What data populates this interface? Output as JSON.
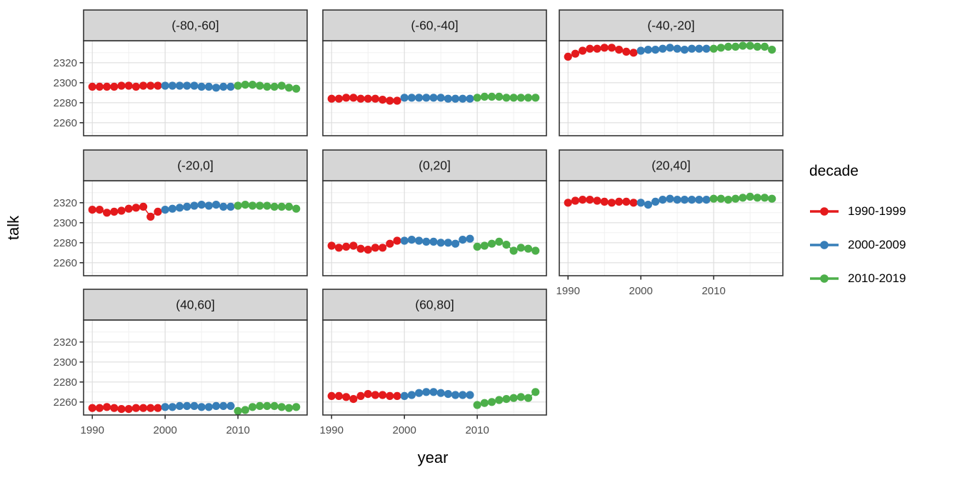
{
  "chart_data": {
    "type": "scatter",
    "title": "",
    "xlabel": "year",
    "ylabel": "talk",
    "grid": true,
    "x_domain": [
      1988.8,
      2019.5
    ],
    "y_domain": [
      2247,
      2342
    ],
    "x_ticks": [
      1990,
      2000,
      2010
    ],
    "y_ticks": [
      2320,
      2300,
      2280,
      2260
    ],
    "x_minor_gridlines": [
      1995,
      2005,
      2015
    ],
    "y_minor_gridlines": [
      2250,
      2270,
      2290,
      2310,
      2330
    ],
    "legend": {
      "title": "decade",
      "position": "right",
      "entries": [
        {
          "label": "1990-1999",
          "color": "#E41A1C"
        },
        {
          "label": "2000-2009",
          "color": "#377EB8"
        },
        {
          "label": "2010-2019",
          "color": "#4DAF4A"
        }
      ]
    },
    "decades": [
      {
        "name": "1990-1999",
        "color": "#E41A1C",
        "years": [
          1990,
          1991,
          1992,
          1993,
          1994,
          1995,
          1996,
          1997,
          1998,
          1999
        ]
      },
      {
        "name": "2000-2009",
        "color": "#377EB8",
        "years": [
          2000,
          2001,
          2002,
          2003,
          2004,
          2005,
          2006,
          2007,
          2008,
          2009
        ]
      },
      {
        "name": "2010-2019",
        "color": "#4DAF4A",
        "years": [
          2010,
          2011,
          2012,
          2013,
          2014,
          2015,
          2016,
          2017,
          2018
        ]
      }
    ],
    "facets": [
      {
        "label": "(-80,-60]",
        "series": [
          {
            "name": "1990-1999",
            "values": [
              2296,
              2296,
              2296,
              2296,
              2297,
              2297,
              2296,
              2297,
              2297,
              2297
            ]
          },
          {
            "name": "2000-2009",
            "values": [
              2297,
              2297,
              2297,
              2297,
              2297,
              2296,
              2296,
              2295,
              2296,
              2296
            ]
          },
          {
            "name": "2010-2019",
            "values": [
              2297,
              2298,
              2298,
              2297,
              2296,
              2296,
              2297,
              2295,
              2294
            ]
          }
        ]
      },
      {
        "label": "(-60,-40]",
        "series": [
          {
            "name": "1990-1999",
            "values": [
              2284,
              2284,
              2285,
              2285,
              2284,
              2284,
              2284,
              2283,
              2282,
              2282
            ]
          },
          {
            "name": "2000-2009",
            "values": [
              2285,
              2285,
              2285,
              2285,
              2285,
              2285,
              2284,
              2284,
              2284,
              2284
            ]
          },
          {
            "name": "2010-2019",
            "values": [
              2285,
              2286,
              2286,
              2286,
              2285,
              2285,
              2285,
              2285,
              2285
            ]
          }
        ]
      },
      {
        "label": "(-40,-20]",
        "series": [
          {
            "name": "1990-1999",
            "values": [
              2326,
              2329,
              2332,
              2334,
              2334,
              2335,
              2335,
              2333,
              2331,
              2330
            ]
          },
          {
            "name": "2000-2009",
            "values": [
              2332,
              2333,
              2333,
              2334,
              2335,
              2334,
              2333,
              2334,
              2334,
              2334
            ]
          },
          {
            "name": "2010-2019",
            "values": [
              2334,
              2335,
              2336,
              2336,
              2337,
              2337,
              2336,
              2336,
              2333
            ]
          }
        ]
      },
      {
        "label": "(-20,0]",
        "series": [
          {
            "name": "1990-1999",
            "values": [
              2313,
              2313,
              2310,
              2311,
              2312,
              2314,
              2315,
              2316,
              2306,
              2311
            ]
          },
          {
            "name": "2000-2009",
            "values": [
              2313,
              2314,
              2315,
              2316,
              2317,
              2318,
              2317,
              2318,
              2316,
              2316
            ]
          },
          {
            "name": "2010-2019",
            "values": [
              2317,
              2318,
              2317,
              2317,
              2317,
              2316,
              2316,
              2316,
              2314
            ]
          }
        ]
      },
      {
        "label": "(0,20]",
        "series": [
          {
            "name": "1990-1999",
            "values": [
              2277,
              2275,
              2276,
              2277,
              2274,
              2273,
              2275,
              2275,
              2279,
              2282
            ]
          },
          {
            "name": "2000-2009",
            "values": [
              2282,
              2283,
              2282,
              2281,
              2281,
              2280,
              2280,
              2279,
              2283,
              2284
            ]
          },
          {
            "name": "2010-2019",
            "values": [
              2276,
              2277,
              2279,
              2281,
              2278,
              2272,
              2275,
              2274,
              2272
            ]
          }
        ]
      },
      {
        "label": "(20,40]",
        "series": [
          {
            "name": "1990-1999",
            "values": [
              2320,
              2322,
              2323,
              2323,
              2322,
              2321,
              2320,
              2321,
              2321,
              2320
            ]
          },
          {
            "name": "2000-2009",
            "values": [
              2320,
              2318,
              2321,
              2323,
              2324,
              2323,
              2323,
              2323,
              2323,
              2323
            ]
          },
          {
            "name": "2010-2019",
            "values": [
              2324,
              2324,
              2323,
              2324,
              2325,
              2326,
              2325,
              2325,
              2324
            ]
          }
        ]
      },
      {
        "label": "(40,60]",
        "series": [
          {
            "name": "1990-1999",
            "values": [
              2254,
              2254,
              2255,
              2254,
              2253,
              2253,
              2254,
              2254,
              2254,
              2254
            ]
          },
          {
            "name": "2000-2009",
            "values": [
              2255,
              2255,
              2256,
              2256,
              2256,
              2255,
              2255,
              2256,
              2256,
              2256
            ]
          },
          {
            "name": "2010-2019",
            "values": [
              2251,
              2252,
              2255,
              2256,
              2256,
              2256,
              2255,
              2254,
              2255
            ]
          }
        ]
      },
      {
        "label": "(60,80]",
        "series": [
          {
            "name": "1990-1999",
            "values": [
              2266,
              2266,
              2265,
              2263,
              2266,
              2268,
              2267,
              2267,
              2266,
              2266
            ]
          },
          {
            "name": "2000-2009",
            "values": [
              2266,
              2267,
              2269,
              2270,
              2270,
              2269,
              2268,
              2267,
              2267,
              2267
            ]
          },
          {
            "name": "2010-2019",
            "values": [
              2257,
              2259,
              2260,
              2262,
              2263,
              2264,
              2265,
              2264,
              2270
            ]
          }
        ]
      }
    ],
    "style": {
      "strip_bg": "#d6d6d6",
      "panel_border": "#333333",
      "major_grid": "#dedede",
      "minor_grid": "#efefef",
      "tick_label_color": "#4d4d4d",
      "strip_text_color": "#1a1a1a"
    }
  }
}
